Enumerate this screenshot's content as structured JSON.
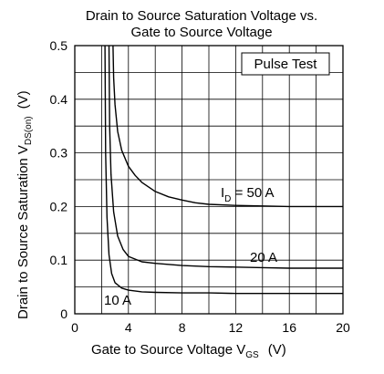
{
  "chart_data": {
    "type": "line",
    "title_line1": "Drain to Source Saturation Voltage vs.",
    "title_line2": "Gate to Source Voltage",
    "xlabel_main": "Gate to Source Voltage  V",
    "xlabel_sub": "GS",
    "xlabel_unit": "(V)",
    "ylabel_main": "Drain to Source Saturation  V",
    "ylabel_sub": "DS(on)",
    "ylabel_unit": "(V)",
    "xlim": [
      0,
      20
    ],
    "ylim": [
      0,
      0.5
    ],
    "grid": true,
    "x_ticks": [
      "0",
      "4",
      "8",
      "12",
      "16",
      "20"
    ],
    "y_ticks": [
      "0",
      "0.1",
      "0.2",
      "0.3",
      "0.4",
      "0.5"
    ],
    "annotation_box": "Pulse Test",
    "series": [
      {
        "label_main": "I",
        "label_sub": "D",
        "label_rest": " = 50 A",
        "x": [
          2.85,
          2.9,
          3.0,
          3.2,
          3.5,
          4.0,
          4.5,
          5.0,
          6.0,
          7.0,
          8.0,
          9.0,
          10.0,
          12.0,
          14.0,
          16.0,
          18.0,
          20.0
        ],
        "y": [
          0.5,
          0.44,
          0.39,
          0.34,
          0.305,
          0.275,
          0.258,
          0.245,
          0.228,
          0.218,
          0.212,
          0.207,
          0.204,
          0.202,
          0.201,
          0.2,
          0.2,
          0.2
        ]
      },
      {
        "label_main": "20 A",
        "label_sub": "",
        "label_rest": "",
        "x": [
          2.55,
          2.6,
          2.7,
          2.9,
          3.2,
          3.6,
          4.0,
          5.0,
          6.0,
          8.0,
          10.0,
          12.0,
          14.0,
          16.0,
          18.0,
          20.0
        ],
        "y": [
          0.5,
          0.35,
          0.26,
          0.19,
          0.145,
          0.12,
          0.107,
          0.097,
          0.094,
          0.09,
          0.088,
          0.087,
          0.086,
          0.085,
          0.085,
          0.085
        ]
      },
      {
        "label_main": "10 A",
        "label_sub": "",
        "label_rest": "",
        "x": [
          2.25,
          2.3,
          2.4,
          2.55,
          2.75,
          3.0,
          3.5,
          4.0,
          5.0,
          6.0,
          8.0,
          10.0,
          12.0,
          16.0,
          20.0
        ],
        "y": [
          0.5,
          0.3,
          0.18,
          0.11,
          0.075,
          0.058,
          0.048,
          0.044,
          0.041,
          0.04,
          0.039,
          0.039,
          0.038,
          0.038,
          0.038
        ]
      }
    ]
  }
}
